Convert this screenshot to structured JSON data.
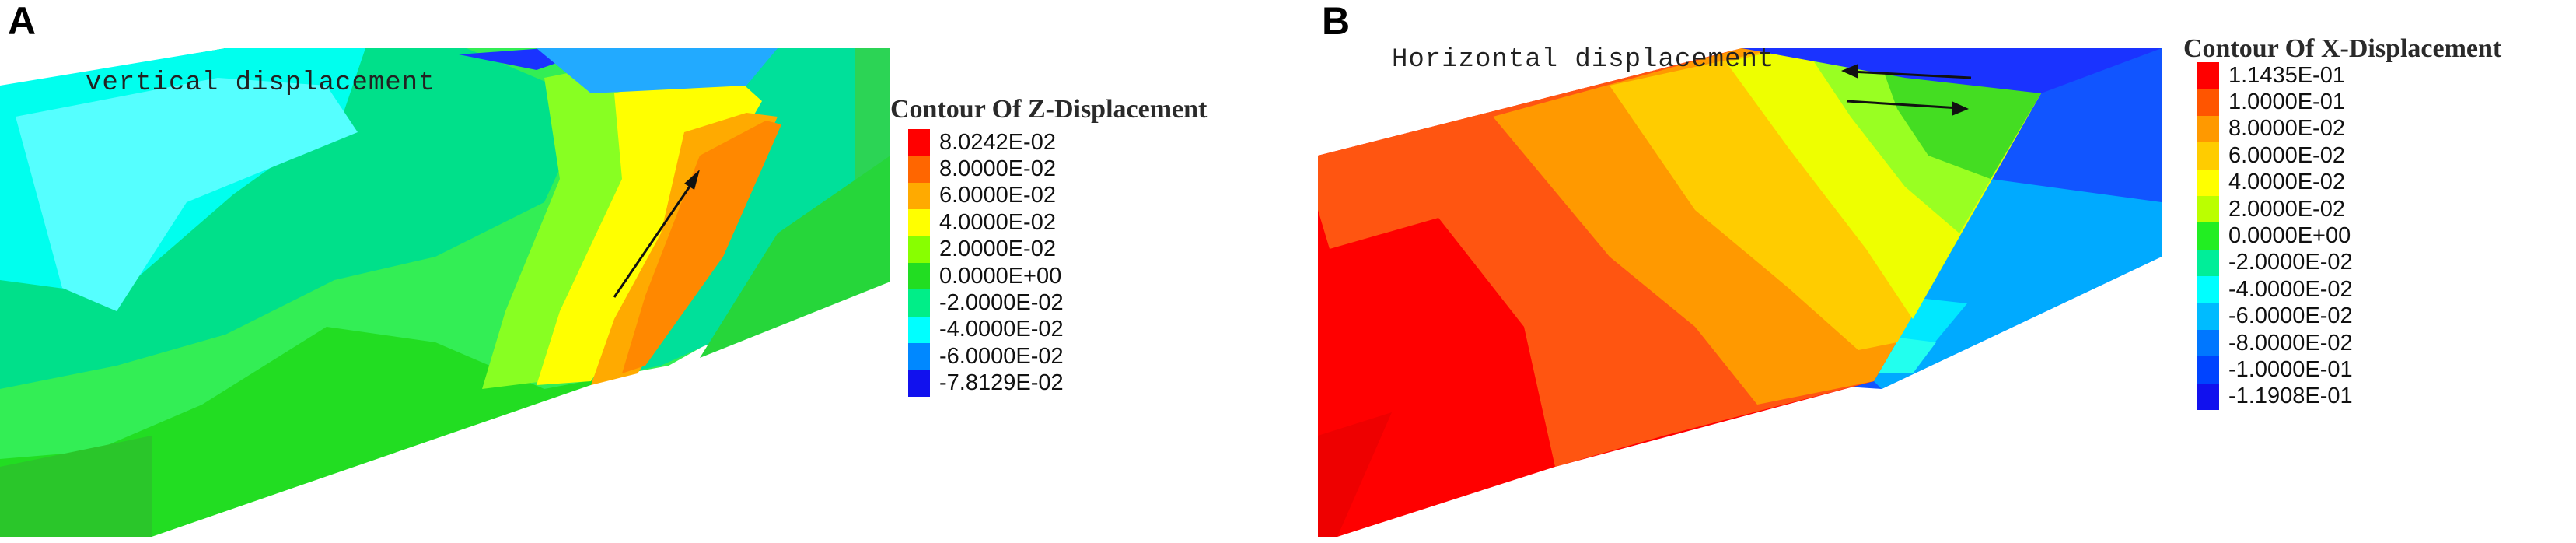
{
  "panels": [
    {
      "letter": "A",
      "annotation": "vertical displacement",
      "legend_title": "Contour Of Z-Displacement",
      "legend": [
        {
          "label": "8.0242E-02",
          "color": "#ff0000"
        },
        {
          "label": "8.0000E-02",
          "color": "#ff6600"
        },
        {
          "label": "6.0000E-02",
          "color": "#ffaa00"
        },
        {
          "label": "4.0000E-02",
          "color": "#ffff00"
        },
        {
          "label": "2.0000E-02",
          "color": "#88ff00"
        },
        {
          "label": "0.0000E+00",
          "color": "#22dd22"
        },
        {
          "label": "-2.0000E-02",
          "color": "#00ee88"
        },
        {
          "label": "-4.0000E-02",
          "color": "#00ffff"
        },
        {
          "label": "-6.0000E-02",
          "color": "#0088ff"
        },
        {
          "label": "-7.8129E-02",
          "color": "#1111ee"
        }
      ]
    },
    {
      "letter": "B",
      "annotation": "Horizontal displacement",
      "legend_title": "Contour Of X-Displacement",
      "legend": [
        {
          "label": "1.1435E-01",
          "color": "#ff0000"
        },
        {
          "label": "1.0000E-01",
          "color": "#ff5500"
        },
        {
          "label": "8.0000E-02",
          "color": "#ff9900"
        },
        {
          "label": "6.0000E-02",
          "color": "#ffcc00"
        },
        {
          "label": "4.0000E-02",
          "color": "#ffff00"
        },
        {
          "label": "2.0000E-02",
          "color": "#bbff00"
        },
        {
          "label": "0.0000E+00",
          "color": "#22ee22"
        },
        {
          "label": "-2.0000E-02",
          "color": "#00ee99"
        },
        {
          "label": "-4.0000E-02",
          "color": "#00ffff"
        },
        {
          "label": "-6.0000E-02",
          "color": "#00bbff"
        },
        {
          "label": "-8.0000E-02",
          "color": "#0077ff"
        },
        {
          "label": "-1.0000E-01",
          "color": "#0044ff"
        },
        {
          "label": "-1.1908E-01",
          "color": "#1111ee"
        }
      ]
    }
  ]
}
